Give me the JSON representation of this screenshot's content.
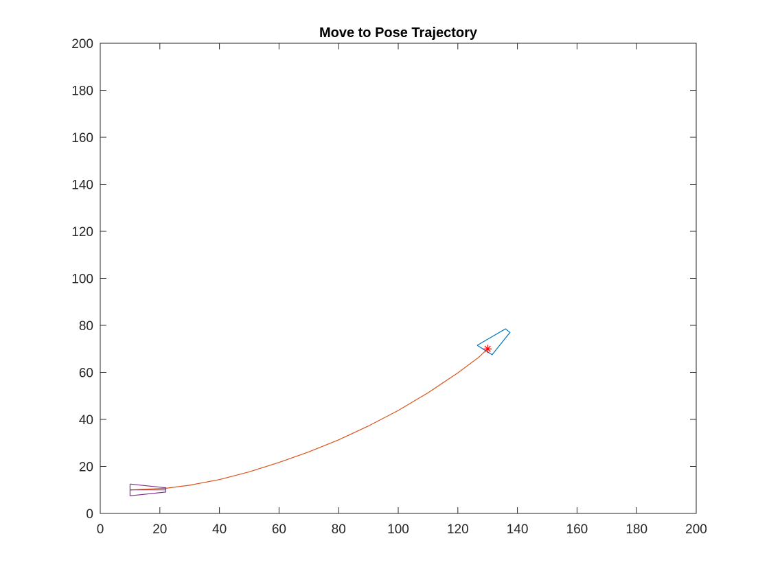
{
  "chart_data": {
    "type": "line",
    "title": "Move to Pose Trajectory",
    "xlabel": "",
    "ylabel": "",
    "xlim": [
      0,
      200
    ],
    "ylim": [
      0,
      200
    ],
    "xticks": [
      0,
      20,
      40,
      60,
      80,
      100,
      120,
      140,
      160,
      180,
      200
    ],
    "yticks": [
      0,
      20,
      40,
      60,
      80,
      100,
      120,
      140,
      160,
      180,
      200
    ],
    "grid": false,
    "legend": "none",
    "colors": {
      "trajectory": "#D95319",
      "start_vehicle": "#7E2F8E",
      "goal_vehicle": "#0072BD",
      "goal_marker": "#FF0000",
      "axes": "#262626"
    },
    "series": [
      {
        "kind": "trajectory",
        "x": [
          10,
          22,
          30,
          40,
          50,
          60,
          70,
          80,
          90,
          100,
          110,
          120,
          127,
          130
        ],
        "y": [
          10,
          10.7,
          12,
          14.4,
          17.7,
          21.7,
          26.2,
          31.3,
          37.2,
          43.8,
          51.3,
          59.8,
          66.4,
          70
        ]
      },
      {
        "kind": "start-vehicle",
        "x": [
          10,
          22,
          22,
          10,
          10
        ],
        "y": [
          12.5,
          10.9,
          9.1,
          7.5,
          12.5
        ],
        "heading": {
          "x": [
            10,
            22
          ],
          "y": [
            10,
            10
          ]
        }
      },
      {
        "kind": "goal-vehicle",
        "x": [
          126.5,
          136,
          137.5,
          131.5,
          126.5
        ],
        "y": [
          71.5,
          78.5,
          77,
          67.5,
          71.5
        ]
      },
      {
        "kind": "goal-marker",
        "x": [
          130
        ],
        "y": [
          70
        ]
      }
    ]
  }
}
